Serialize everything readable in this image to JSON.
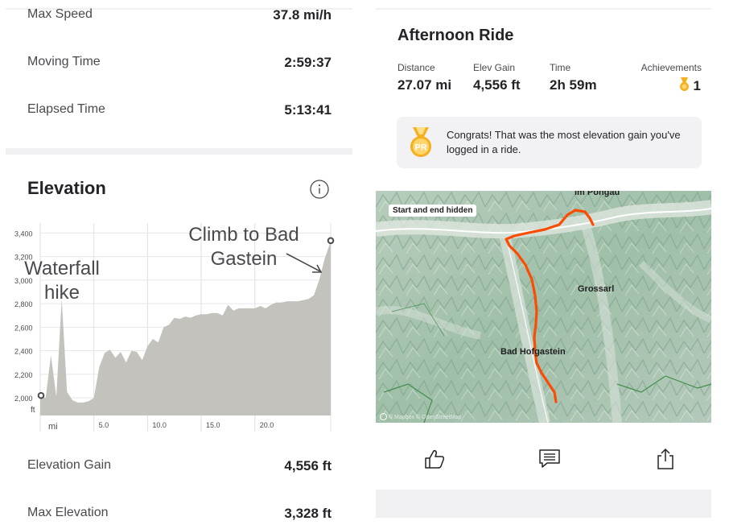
{
  "left_stats": [
    {
      "label": "Max Speed",
      "value": "37.8 mi/h"
    },
    {
      "label": "Moving Time",
      "value": "2:59:37"
    },
    {
      "label": "Elapsed Time",
      "value": "5:13:41"
    }
  ],
  "elevation": {
    "title": "Elevation",
    "annotations": {
      "left": "Waterfall hike",
      "right": "Climb to Bad Gastein"
    },
    "y_ticks": [
      "3,400",
      "3,200",
      "3,000",
      "2,800",
      "2,600",
      "2,400",
      "2,200",
      "2,000"
    ],
    "y_unit": "ft",
    "x_ticks": [
      "5.0",
      "10.0",
      "15.0",
      "20.0"
    ],
    "x_unit": "mi"
  },
  "bottom_stats": [
    {
      "label": "Elevation Gain",
      "value": "4,556 ft"
    },
    {
      "label": "Max Elevation",
      "value": "3,328 ft"
    }
  ],
  "chart_data": {
    "type": "area",
    "x": [
      0,
      0.5,
      1,
      1.5,
      2,
      2.5,
      3,
      3.5,
      4,
      4.5,
      5,
      5.5,
      6,
      6.5,
      7,
      7.5,
      8,
      8.5,
      9,
      9.5,
      10,
      10.5,
      11,
      11.5,
      12,
      12.5,
      13,
      13.5,
      14,
      14.5,
      15,
      15.5,
      16,
      16.5,
      17,
      17.5,
      18,
      18.5,
      19,
      19.5,
      20,
      20.5,
      21,
      21.5,
      22,
      22.5,
      23,
      23.5,
      24,
      24.5,
      25,
      25.5,
      26,
      26.5,
      27.07
    ],
    "y": [
      2020,
      2000,
      2360,
      2010,
      2840,
      2050,
      1980,
      1960,
      1960,
      1970,
      2000,
      2260,
      2380,
      2410,
      2340,
      2390,
      2300,
      2400,
      2390,
      2320,
      2440,
      2500,
      2470,
      2600,
      2620,
      2680,
      2670,
      2690,
      2680,
      2700,
      2710,
      2710,
      2720,
      2720,
      2700,
      2790,
      2740,
      2760,
      2760,
      2760,
      2760,
      2780,
      2760,
      2790,
      2810,
      2810,
      2820,
      2820,
      2820,
      2830,
      2840,
      2870,
      3000,
      3180,
      3328
    ],
    "xlabel": "mi",
    "ylabel": "ft",
    "ylim": [
      1850,
      3450
    ],
    "xlim": [
      0,
      27.07
    ],
    "annotations": [
      "Waterfall hike",
      "Climb to Bad Gastein"
    ],
    "title": "Elevation"
  },
  "ride": {
    "title": "Afternoon Ride",
    "stats": [
      {
        "label": "Distance",
        "value": "27.07 mi"
      },
      {
        "label": "Elev Gain",
        "value": "4,556 ft"
      },
      {
        "label": "Time",
        "value": "2h 59m"
      },
      {
        "label": "Achievements",
        "value": "1"
      }
    ],
    "congrats": "Congrats! That was the most elevation gain you've logged in a ride.",
    "pr_badge": "PR"
  },
  "map": {
    "badge": "Start and end hidden",
    "places": [
      "im Pongau",
      "Grossarl",
      "Bad Hofgastein"
    ],
    "attribution": "© Mapbox © OpenStreetMap"
  },
  "actions": [
    {
      "name": "kudos",
      "icon": "thumbs-up-icon"
    },
    {
      "name": "comment",
      "icon": "comment-icon"
    },
    {
      "name": "share",
      "icon": "share-icon"
    }
  ],
  "colors": {
    "accent": "#fc4c02",
    "medal": "#f5b021",
    "chart_fill": "#c4c2bd",
    "panel_gray": "#f2f2f4"
  }
}
